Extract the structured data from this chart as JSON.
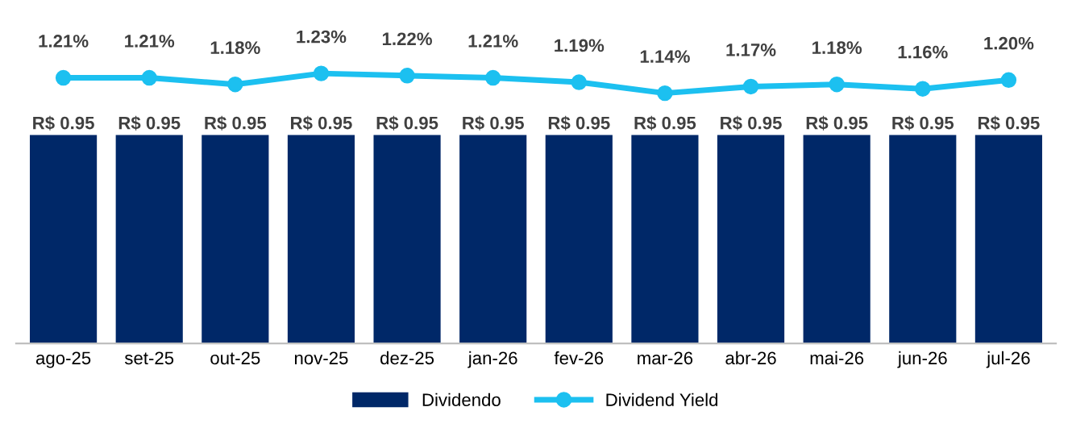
{
  "chart_data": {
    "type": "bar",
    "categories": [
      "ago-25",
      "set-25",
      "out-25",
      "nov-25",
      "dez-25",
      "jan-26",
      "fev-26",
      "mar-26",
      "abr-26",
      "mai-26",
      "jun-26",
      "jul-26"
    ],
    "series": [
      {
        "name": "Dividendo",
        "color": "#002868",
        "values": [
          0.95,
          0.95,
          0.95,
          0.95,
          0.95,
          0.95,
          0.95,
          0.95,
          0.95,
          0.95,
          0.95,
          0.95
        ],
        "value_labels": [
          "R$ 0.95",
          "R$ 0.95",
          "R$ 0.95",
          "R$ 0.95",
          "R$ 0.95",
          "R$ 0.95",
          "R$ 0.95",
          "R$ 0.95",
          "R$ 0.95",
          "R$ 0.95",
          "R$ 0.95",
          "R$ 0.95"
        ]
      },
      {
        "name": "Dividend Yield",
        "type": "line",
        "color": "#1cc0f0",
        "marker": "circle",
        "values": [
          1.21,
          1.21,
          1.18,
          1.23,
          1.22,
          1.21,
          1.19,
          1.14,
          1.17,
          1.18,
          1.16,
          1.2
        ],
        "value_labels": [
          "1.21%",
          "1.21%",
          "1.18%",
          "1.23%",
          "1.22%",
          "1.21%",
          "1.19%",
          "1.14%",
          "1.17%",
          "1.18%",
          "1.16%",
          "1.20%"
        ]
      }
    ],
    "legend": "bottom",
    "grid": false
  }
}
